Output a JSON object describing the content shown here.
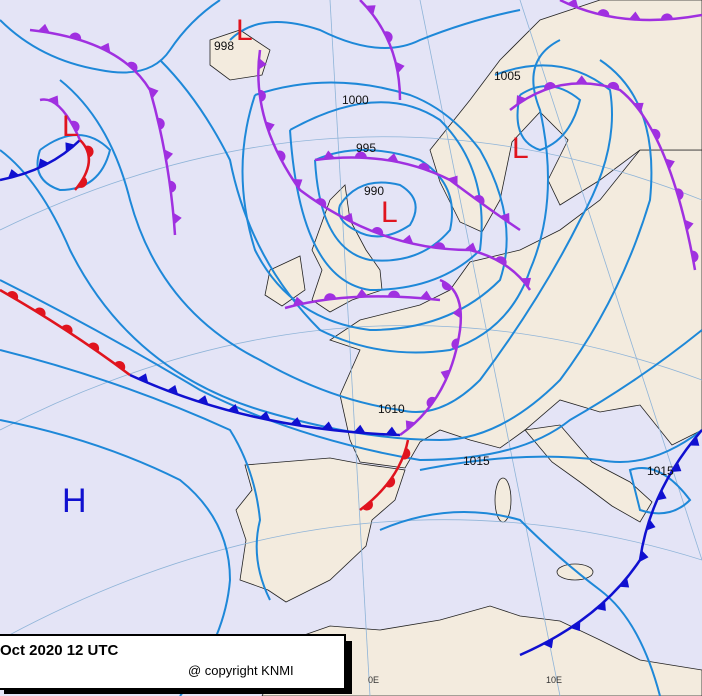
{
  "pressure_centers": [
    "L",
    "L",
    "L",
    "L",
    "H"
  ],
  "isobar_labels": [
    1000,
    995,
    990,
    1005,
    1010,
    1015,
    1015,
    998
  ],
  "longitude_labels": [
    "0E",
    "10E"
  ],
  "caption": {
    "date": "Oct 2020 12 UTC",
    "copyright": "@ copyright KNMI"
  }
}
